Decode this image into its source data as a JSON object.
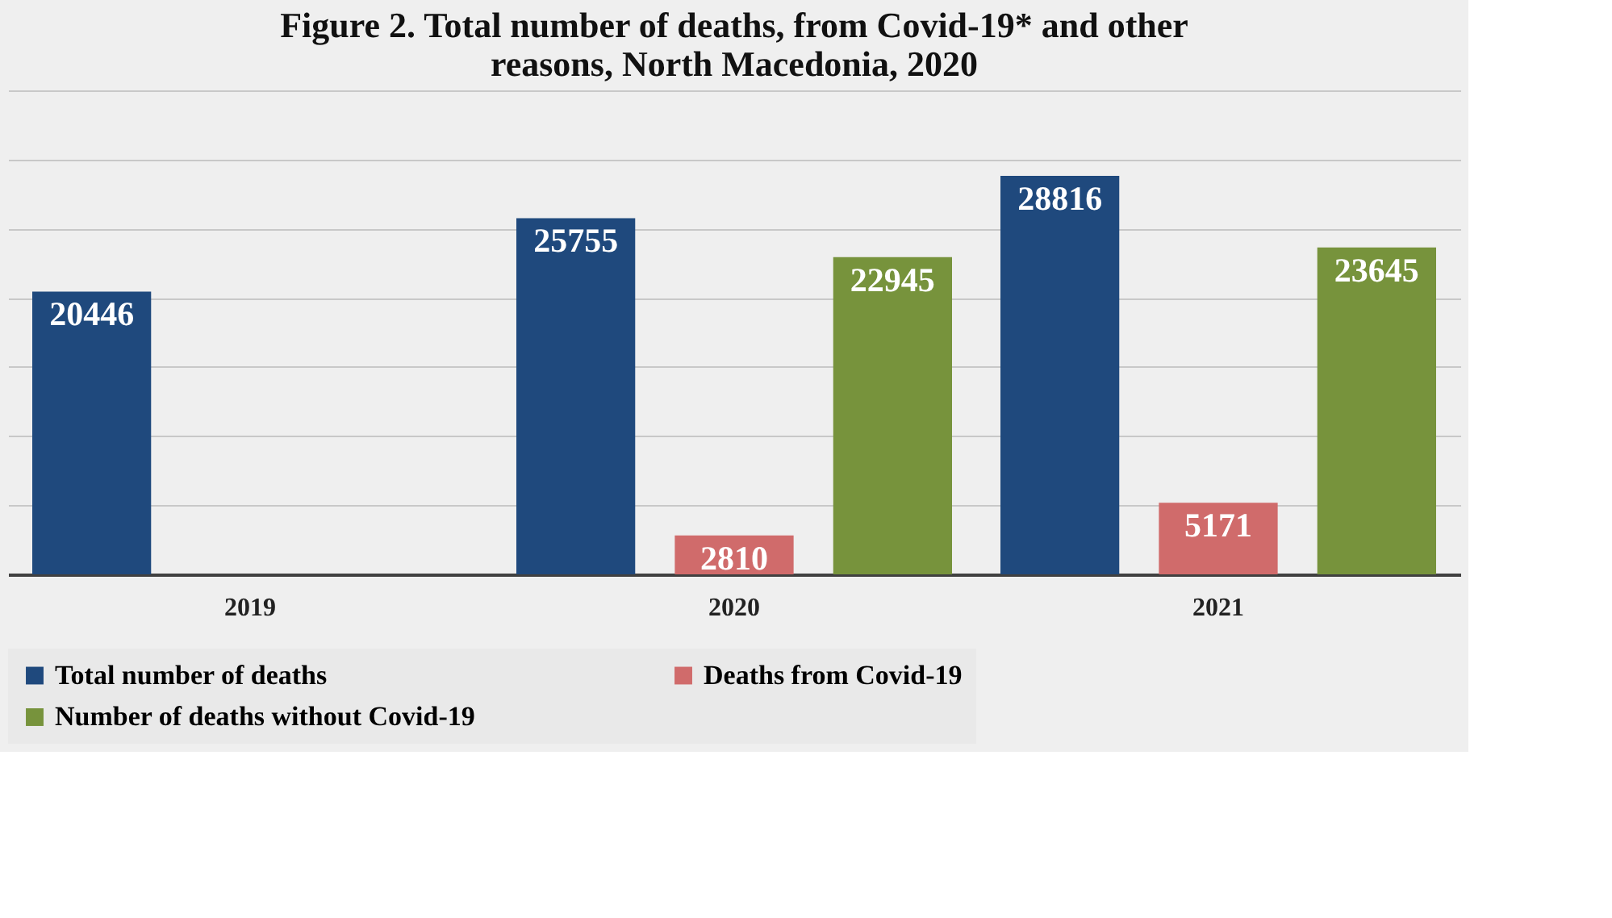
{
  "chart_data": {
    "type": "bar",
    "title": "Figure 2. Total number of deaths, from Covid-19* and other reasons, North Macedonia, 2020",
    "categories": [
      "2019",
      "2020",
      "2021"
    ],
    "series": [
      {
        "name": "Total number of deaths",
        "color": "#1f497d",
        "values": [
          20446,
          25755,
          28816
        ]
      },
      {
        "name": "Deaths from Covid-19",
        "color": "#d06b6b",
        "values": [
          null,
          2810,
          5171
        ]
      },
      {
        "name": "Number of deaths without Covid-19",
        "color": "#77933c",
        "values": [
          null,
          22945,
          23645
        ]
      }
    ],
    "ylim": [
      0,
      35000
    ],
    "yticks": [
      {
        "value": 0,
        "label": null
      },
      {
        "value": 5000,
        "label": null
      },
      {
        "value": 10000,
        "label": null
      },
      {
        "value": 15000,
        "label": null
      },
      {
        "value": 20000,
        "label": null
      },
      {
        "value": 25000,
        "label": null
      },
      {
        "value": 30000,
        "label": null
      },
      {
        "value": 35000,
        "label": null
      }
    ],
    "tick_labels": "x",
    "grid": "y",
    "legend": "bottom",
    "data_labels": true
  }
}
